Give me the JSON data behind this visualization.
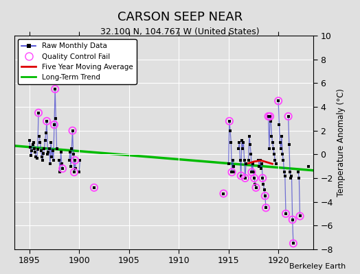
{
  "title": "CARSON SEEP NEAR",
  "subtitle": "32.100 N, 104.767 W (United States)",
  "ylabel": "Temperature Anomaly (°C)",
  "credit": "Berkeley Earth",
  "xlim": [
    1893.5,
    1923.5
  ],
  "ylim": [
    -8,
    10
  ],
  "yticks": [
    -8,
    -6,
    -4,
    -2,
    0,
    2,
    4,
    6,
    8,
    10
  ],
  "xticks": [
    1895,
    1900,
    1905,
    1910,
    1915,
    1920
  ],
  "bg_color": "#e0e0e0",
  "segments": [
    [
      [
        1895.0,
        1.2
      ],
      [
        1895.083,
        0.6
      ],
      [
        1895.167,
        -0.1
      ],
      [
        1895.25,
        0.3
      ],
      [
        1895.333,
        0.8
      ],
      [
        1895.417,
        1.0
      ],
      [
        1895.5,
        0.5
      ],
      [
        1895.583,
        0.2
      ],
      [
        1895.667,
        -0.2
      ],
      [
        1895.75,
        -0.3
      ],
      [
        1895.833,
        0.4
      ],
      [
        1895.917,
        3.5
      ]
    ],
    [
      [
        1896.0,
        1.5
      ],
      [
        1896.083,
        1.0
      ],
      [
        1896.167,
        0.3
      ],
      [
        1896.25,
        -0.2
      ],
      [
        1896.333,
        -0.5
      ],
      [
        1896.417,
        0.1
      ],
      [
        1896.5,
        0.5
      ],
      [
        1896.583,
        1.2
      ],
      [
        1896.667,
        1.8
      ],
      [
        1896.75,
        2.8
      ],
      [
        1896.833,
        0.0
      ],
      [
        1896.917,
        0.2
      ]
    ],
    [
      [
        1897.0,
        0.5
      ],
      [
        1897.083,
        -0.8
      ],
      [
        1897.167,
        1.0
      ],
      [
        1897.25,
        -0.2
      ],
      [
        1897.333,
        0.3
      ],
      [
        1897.417,
        -0.5
      ],
      [
        1897.5,
        2.5
      ],
      [
        1897.583,
        5.5
      ],
      [
        1897.667,
        3.0
      ],
      [
        1897.75,
        0.5
      ]
    ],
    [
      [
        1898.0,
        -0.5
      ],
      [
        1898.083,
        -1.5
      ],
      [
        1898.167,
        0.2
      ],
      [
        1898.25,
        -0.8
      ],
      [
        1898.333,
        -1.2
      ]
    ],
    [
      [
        1899.0,
        -0.5
      ],
      [
        1899.083,
        0.2
      ],
      [
        1899.167,
        -1.0
      ],
      [
        1899.25,
        0.5
      ],
      [
        1899.333,
        2.0
      ],
      [
        1899.417,
        0.0
      ],
      [
        1899.5,
        -1.5
      ],
      [
        1899.583,
        -0.5
      ],
      [
        1899.667,
        -1.2
      ]
    ],
    [
      [
        1900.0,
        -1.5
      ],
      [
        1900.083,
        -0.5
      ]
    ],
    [
      [
        1901.5,
        -2.8
      ]
    ],
    [
      [
        1914.5,
        -3.3
      ]
    ],
    [
      [
        1915.0,
        -0.8
      ],
      [
        1915.083,
        2.8
      ],
      [
        1915.167,
        2.0
      ],
      [
        1915.25,
        1.0
      ],
      [
        1915.333,
        -1.5
      ],
      [
        1915.417,
        -0.5
      ],
      [
        1915.5,
        -1.0
      ],
      [
        1915.583,
        -1.5
      ]
    ],
    [
      [
        1916.0,
        0.5
      ],
      [
        1916.083,
        1.0
      ],
      [
        1916.167,
        -0.5
      ],
      [
        1916.25,
        -1.8
      ],
      [
        1916.333,
        1.2
      ],
      [
        1916.417,
        0.5
      ],
      [
        1916.5,
        1.0
      ],
      [
        1916.583,
        -0.5
      ],
      [
        1916.667,
        -2.0
      ],
      [
        1916.75,
        -0.8
      ]
    ],
    [
      [
        1917.0,
        -0.5
      ],
      [
        1917.083,
        1.5
      ],
      [
        1917.167,
        0.8
      ],
      [
        1917.25,
        0.0
      ],
      [
        1917.333,
        -1.5
      ],
      [
        1917.417,
        -0.8
      ],
      [
        1917.5,
        -1.5
      ],
      [
        1917.583,
        -2.0
      ],
      [
        1917.667,
        -2.5
      ],
      [
        1917.75,
        -2.8
      ]
    ],
    [
      [
        1918.0,
        -0.5
      ],
      [
        1918.083,
        -1.0
      ],
      [
        1918.167,
        -0.5
      ],
      [
        1918.25,
        -1.2
      ],
      [
        1918.333,
        -0.8
      ],
      [
        1918.417,
        -2.0
      ],
      [
        1918.5,
        -2.5
      ],
      [
        1918.583,
        -3.0
      ],
      [
        1918.667,
        -3.5
      ],
      [
        1918.75,
        -4.5
      ]
    ],
    [
      [
        1919.0,
        3.2
      ],
      [
        1919.083,
        0.5
      ],
      [
        1919.167,
        3.2
      ],
      [
        1919.25,
        2.8
      ],
      [
        1919.333,
        1.5
      ],
      [
        1919.417,
        1.0
      ],
      [
        1919.5,
        0.5
      ],
      [
        1919.583,
        0.0
      ],
      [
        1919.667,
        -0.5
      ],
      [
        1919.75,
        -0.8
      ]
    ],
    [
      [
        1920.0,
        4.5
      ],
      [
        1920.083,
        2.5
      ],
      [
        1920.167,
        1.0
      ],
      [
        1920.25,
        0.5
      ],
      [
        1920.333,
        1.5
      ],
      [
        1920.417,
        0.0
      ],
      [
        1920.5,
        -0.5
      ],
      [
        1920.583,
        -1.5
      ],
      [
        1920.667,
        -1.8
      ],
      [
        1920.75,
        -5.0
      ]
    ],
    [
      [
        1921.0,
        3.2
      ],
      [
        1921.083,
        0.8
      ],
      [
        1921.167,
        -1.5
      ],
      [
        1921.25,
        -2.0
      ],
      [
        1921.333,
        -1.8
      ],
      [
        1921.417,
        -5.5
      ],
      [
        1921.5,
        -7.5
      ]
    ],
    [
      [
        1922.0,
        -1.5
      ],
      [
        1922.083,
        -2.0
      ],
      [
        1922.167,
        -5.2
      ]
    ],
    [
      [
        1923.0,
        -1.0
      ]
    ]
  ],
  "qc_fail_points": [
    [
      1895.917,
      3.5
    ],
    [
      1896.75,
      2.8
    ],
    [
      1897.5,
      2.5
    ],
    [
      1897.583,
      5.5
    ],
    [
      1898.333,
      -1.2
    ],
    [
      1899.333,
      2.0
    ],
    [
      1899.5,
      -1.5
    ],
    [
      1899.583,
      -0.5
    ],
    [
      1901.5,
      -2.8
    ],
    [
      1914.5,
      -3.3
    ],
    [
      1915.083,
      2.8
    ],
    [
      1915.333,
      -1.5
    ],
    [
      1916.25,
      -1.8
    ],
    [
      1916.667,
      -2.0
    ],
    [
      1917.333,
      -1.5
    ],
    [
      1917.583,
      -2.0
    ],
    [
      1917.75,
      -2.8
    ],
    [
      1918.417,
      -2.0
    ],
    [
      1918.667,
      -3.5
    ],
    [
      1918.75,
      -4.5
    ],
    [
      1919.0,
      3.2
    ],
    [
      1919.167,
      3.2
    ],
    [
      1920.0,
      4.5
    ],
    [
      1920.75,
      -5.0
    ],
    [
      1921.0,
      3.2
    ],
    [
      1921.417,
      -5.5
    ],
    [
      1921.5,
      -7.5
    ],
    [
      1922.167,
      -5.2
    ]
  ],
  "moving_avg": [
    [
      1917.0,
      -0.75
    ],
    [
      1917.2,
      -0.7
    ],
    [
      1917.4,
      -0.65
    ],
    [
      1917.6,
      -0.6
    ],
    [
      1917.8,
      -0.58
    ],
    [
      1918.0,
      -0.55
    ],
    [
      1918.2,
      -0.52
    ],
    [
      1918.4,
      -0.55
    ],
    [
      1918.6,
      -0.6
    ],
    [
      1918.8,
      -0.65
    ],
    [
      1919.0,
      -0.7
    ],
    [
      1919.2,
      -0.75
    ],
    [
      1919.4,
      -0.8
    ]
  ],
  "trend_x": [
    1893.5,
    1923.5
  ],
  "trend_y": [
    0.72,
    -1.35
  ],
  "raw_color": "#3333cc",
  "raw_line_alpha": 0.65,
  "qc_color": "#ff44ff",
  "ma_color": "#dd0000",
  "trend_color": "#00bb00"
}
